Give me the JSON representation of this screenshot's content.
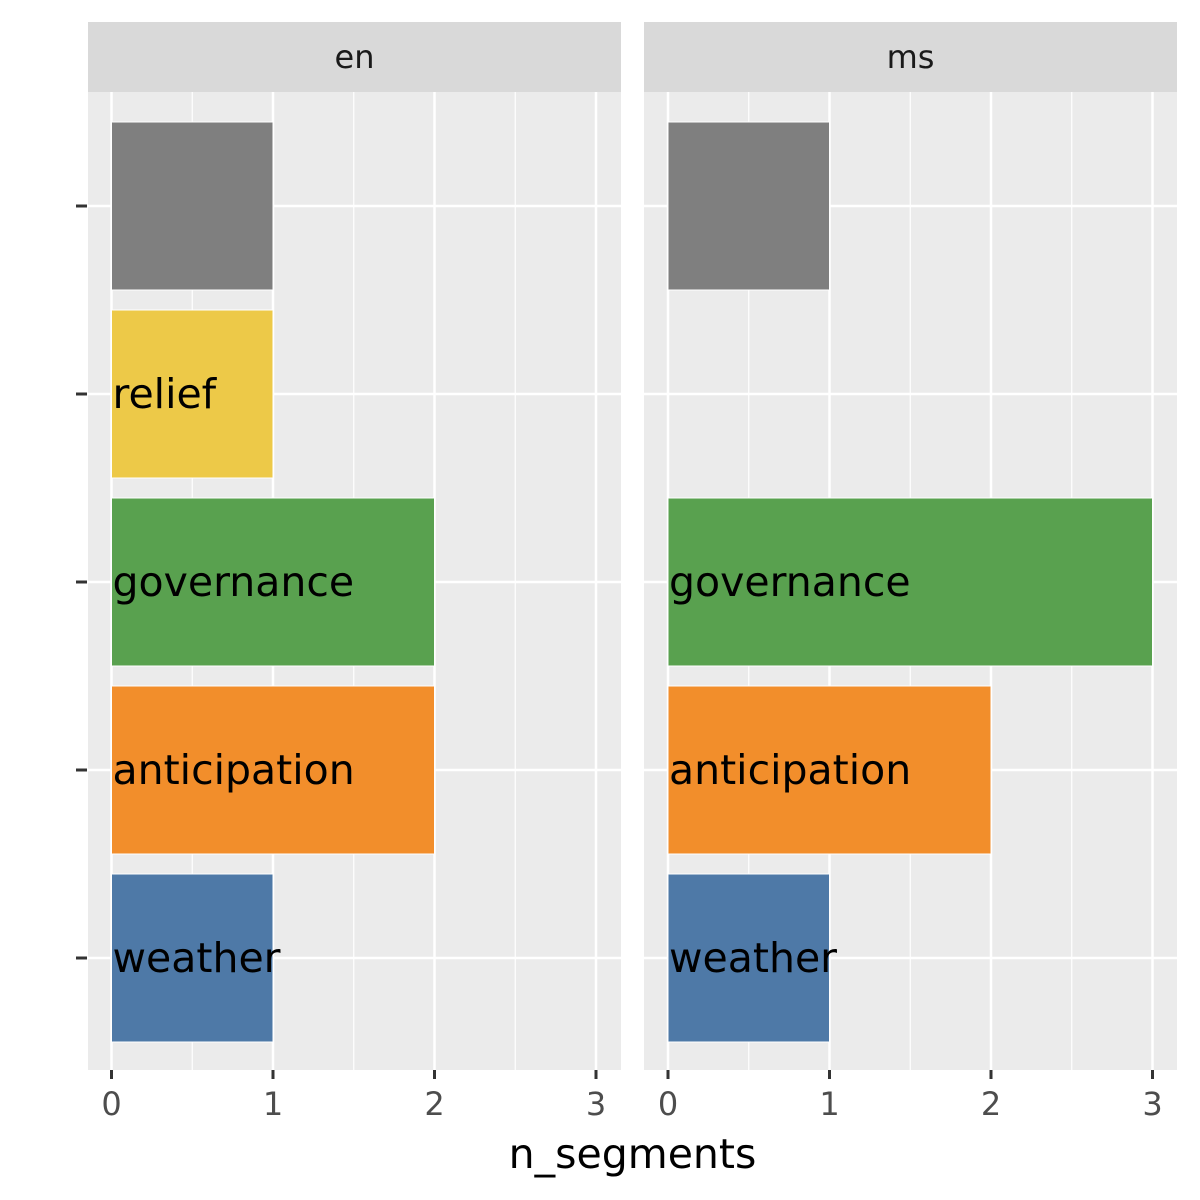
{
  "chart_data": {
    "type": "bar",
    "orientation": "horizontal",
    "facet_by": "language",
    "facets": [
      {
        "name": "en",
        "bars": [
          {
            "category": "weather",
            "label": "weather",
            "value": 1
          },
          {
            "category": "anticipation",
            "label": "anticipation",
            "value": 2
          },
          {
            "category": "governance",
            "label": "governance",
            "value": 2
          },
          {
            "category": "relief",
            "label": "relief",
            "value": 1
          },
          {
            "category": "other",
            "label": "",
            "value": 1
          }
        ]
      },
      {
        "name": "ms",
        "bars": [
          {
            "category": "weather",
            "label": "weather",
            "value": 1
          },
          {
            "category": "anticipation",
            "label": "anticipation",
            "value": 2
          },
          {
            "category": "governance",
            "label": "governance",
            "value": 3
          },
          {
            "category": "relief",
            "label": "",
            "value": 0
          },
          {
            "category": "other",
            "label": "",
            "value": 1
          }
        ]
      }
    ],
    "category_order": [
      "weather",
      "anticipation",
      "governance",
      "relief",
      "other"
    ],
    "colors": {
      "weather": "#4e79a7",
      "anticipation": "#f28e2b",
      "governance": "#59a14f",
      "relief": "#edc948",
      "other": "#7f7f7f"
    },
    "xlabel": "n_segments",
    "ylabel": "",
    "xlim": [
      0,
      3.1
    ],
    "xticks": [
      "0",
      "1",
      "2",
      "3"
    ],
    "grid": true,
    "legend": "none"
  }
}
